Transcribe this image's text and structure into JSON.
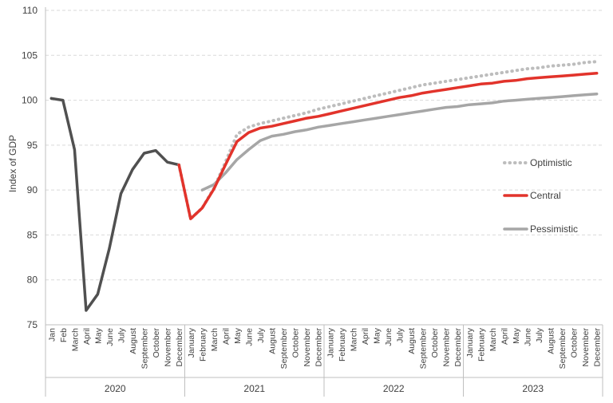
{
  "chart_data": {
    "type": "line",
    "title": "",
    "ylabel": "Index of GDP",
    "xlabel": "",
    "ylim": [
      75,
      110
    ],
    "yticks": [
      75,
      80,
      85,
      90,
      95,
      100,
      105,
      110
    ],
    "grid": "horizontal-dashed",
    "legend_position": "right",
    "years": [
      {
        "label": "2020",
        "months": [
          "Jan",
          "Feb",
          "March",
          "April",
          "May",
          "June",
          "July",
          "August",
          "September",
          "October",
          "November",
          "December"
        ]
      },
      {
        "label": "2021",
        "months": [
          "January",
          "February",
          "March",
          "April",
          "May",
          "June",
          "July",
          "August",
          "September",
          "October",
          "November",
          "December"
        ]
      },
      {
        "label": "2022",
        "months": [
          "January",
          "February",
          "March",
          "April",
          "May",
          "June",
          "July",
          "August",
          "September",
          "October",
          "November",
          "December"
        ]
      },
      {
        "label": "2023",
        "months": [
          "January",
          "February",
          "March",
          "April",
          "May",
          "June",
          "July",
          "August",
          "September",
          "October",
          "November",
          "December"
        ]
      }
    ],
    "series": [
      {
        "key": "actual",
        "color": "#505050",
        "style": "solid",
        "start_index": 0,
        "values": [
          100.2,
          100.0,
          94.5,
          76.6,
          78.4,
          83.5,
          89.6,
          92.3,
          94.1,
          94.4,
          93.1,
          92.8
        ]
      },
      {
        "key": "optimistic",
        "name": "Optimistic",
        "color": "#bdbdbd",
        "style": "dotted",
        "start_index": 11,
        "values": [
          92.8,
          86.8,
          88.0,
          90.2,
          93.1,
          96.2,
          97.0,
          97.4,
          97.7,
          98.0,
          98.3,
          98.6,
          99.0,
          99.3,
          99.6,
          99.9,
          100.2,
          100.5,
          100.8,
          101.1,
          101.4,
          101.7,
          101.9,
          102.1,
          102.3,
          102.5,
          102.7,
          102.9,
          103.1,
          103.3,
          103.5,
          103.6,
          103.8,
          103.9,
          104.0,
          104.2,
          104.3
        ]
      },
      {
        "key": "central",
        "name": "Central",
        "color": "#e2332b",
        "style": "solid",
        "start_index": 11,
        "values": [
          92.8,
          86.8,
          88.0,
          90.1,
          92.8,
          95.4,
          96.4,
          96.9,
          97.1,
          97.4,
          97.7,
          98.0,
          98.2,
          98.5,
          98.8,
          99.1,
          99.4,
          99.7,
          100.0,
          100.3,
          100.5,
          100.8,
          101.0,
          101.2,
          101.4,
          101.6,
          101.8,
          101.9,
          102.1,
          102.2,
          102.4,
          102.5,
          102.6,
          102.7,
          102.8,
          102.9,
          103.0
        ]
      },
      {
        "key": "pessimistic",
        "name": "Pessimistic",
        "color": "#a6a6a6",
        "style": "solid",
        "start_index": 13,
        "values": [
          90.0,
          90.6,
          91.9,
          93.4,
          94.5,
          95.5,
          96.0,
          96.2,
          96.5,
          96.7,
          97.0,
          97.2,
          97.4,
          97.6,
          97.8,
          98.0,
          98.2,
          98.4,
          98.6,
          98.8,
          99.0,
          99.2,
          99.3,
          99.5,
          99.6,
          99.7,
          99.9,
          100.0,
          100.1,
          100.2,
          100.3,
          100.4,
          100.5,
          100.6,
          100.7
        ]
      }
    ],
    "legend": [
      {
        "key": "optimistic",
        "label": "Optimistic"
      },
      {
        "key": "central",
        "label": "Central"
      },
      {
        "key": "pessimistic",
        "label": "Pessimistic"
      }
    ]
  }
}
